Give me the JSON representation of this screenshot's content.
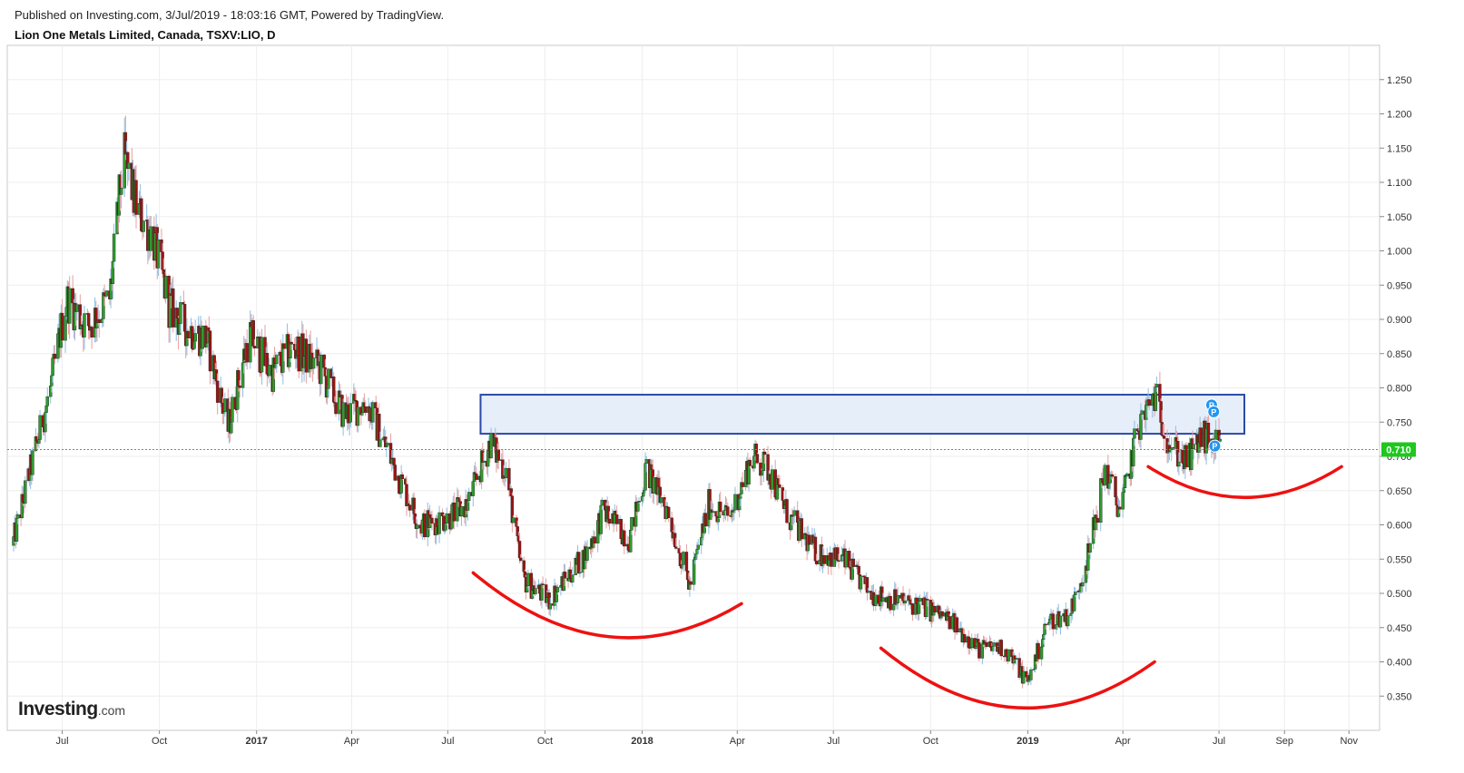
{
  "header": {
    "published": "Published on Investing.com, 3/Jul/2019 - 18:03:16 GMT, Powered by TradingView.",
    "symbol": "Lion One Metals Limited, Canada, TSXV:LIO, D"
  },
  "logo": {
    "main": "Investing",
    "suffix": ".com"
  },
  "colors": {
    "up": "#2e9b2e",
    "down": "#9b1414",
    "price_line": "#1ec81e",
    "zone_fill": "#e6eefa",
    "zone_border": "#2a4aa8",
    "arcs": "#ee1111",
    "grid": "#eeeeee",
    "marker": "#2196f3"
  },
  "chart_data": {
    "type": "candlestick",
    "title": "Lion One Metals Limited, Canada, TSXV:LIO, D",
    "current_price": 0.71,
    "current_price_label": "0.710",
    "y_axis": {
      "range": [
        0.3,
        1.3
      ],
      "ticks": [
        "0.350",
        "0.400",
        "0.450",
        "0.500",
        "0.550",
        "0.600",
        "0.650",
        "0.700",
        "0.750",
        "0.800",
        "0.850",
        "0.900",
        "0.950",
        "1.000",
        "1.050",
        "1.100",
        "1.150",
        "1.200",
        "1.250"
      ]
    },
    "x_axis": {
      "range": [
        "2016-05-10",
        "2019-11-30"
      ],
      "ticks": [
        {
          "label": "Jul",
          "date": "2016-07-01",
          "bold": false
        },
        {
          "label": "Oct",
          "date": "2016-10-01",
          "bold": false
        },
        {
          "label": "2017",
          "date": "2017-01-01",
          "bold": true
        },
        {
          "label": "Apr",
          "date": "2017-04-01",
          "bold": false
        },
        {
          "label": "Jul",
          "date": "2017-07-01",
          "bold": false
        },
        {
          "label": "Oct",
          "date": "2017-10-01",
          "bold": false
        },
        {
          "label": "2018",
          "date": "2018-01-01",
          "bold": true
        },
        {
          "label": "Apr",
          "date": "2018-04-01",
          "bold": false
        },
        {
          "label": "Jul",
          "date": "2018-07-01",
          "bold": false
        },
        {
          "label": "Oct",
          "date": "2018-10-01",
          "bold": false
        },
        {
          "label": "2019",
          "date": "2019-01-01",
          "bold": true
        },
        {
          "label": "Apr",
          "date": "2019-04-01",
          "bold": false
        },
        {
          "label": "Jul",
          "date": "2019-07-01",
          "bold": false
        },
        {
          "label": "Sep",
          "date": "2019-09-01",
          "bold": false
        },
        {
          "label": "Nov",
          "date": "2019-11-01",
          "bold": false
        }
      ]
    },
    "price_path": [
      {
        "date": "2016-05-15",
        "close": 0.57
      },
      {
        "date": "2016-06-01",
        "close": 0.68
      },
      {
        "date": "2016-06-20",
        "close": 0.8
      },
      {
        "date": "2016-07-05",
        "close": 0.93
      },
      {
        "date": "2016-07-25",
        "close": 0.89
      },
      {
        "date": "2016-08-15",
        "close": 0.93
      },
      {
        "date": "2016-08-28",
        "close": 1.14
      },
      {
        "date": "2016-09-10",
        "close": 1.06
      },
      {
        "date": "2016-09-25",
        "close": 1.02
      },
      {
        "date": "2016-10-10",
        "close": 0.92
      },
      {
        "date": "2016-10-25",
        "close": 0.89
      },
      {
        "date": "2016-11-15",
        "close": 0.87
      },
      {
        "date": "2016-12-05",
        "close": 0.74
      },
      {
        "date": "2016-12-25",
        "close": 0.88
      },
      {
        "date": "2017-01-15",
        "close": 0.82
      },
      {
        "date": "2017-02-05",
        "close": 0.86
      },
      {
        "date": "2017-03-01",
        "close": 0.83
      },
      {
        "date": "2017-03-25",
        "close": 0.76
      },
      {
        "date": "2017-04-15",
        "close": 0.78
      },
      {
        "date": "2017-05-10",
        "close": 0.69
      },
      {
        "date": "2017-06-05",
        "close": 0.6
      },
      {
        "date": "2017-07-01",
        "close": 0.61
      },
      {
        "date": "2017-07-20",
        "close": 0.63
      },
      {
        "date": "2017-08-10",
        "close": 0.72
      },
      {
        "date": "2017-08-25",
        "close": 0.68
      },
      {
        "date": "2017-09-10",
        "close": 0.52
      },
      {
        "date": "2017-10-05",
        "close": 0.49
      },
      {
        "date": "2017-10-25",
        "close": 0.53
      },
      {
        "date": "2017-11-10",
        "close": 0.56
      },
      {
        "date": "2017-11-25",
        "close": 0.62
      },
      {
        "date": "2017-12-20",
        "close": 0.58
      },
      {
        "date": "2018-01-05",
        "close": 0.68
      },
      {
        "date": "2018-01-25",
        "close": 0.62
      },
      {
        "date": "2018-02-15",
        "close": 0.51
      },
      {
        "date": "2018-03-05",
        "close": 0.63
      },
      {
        "date": "2018-03-25",
        "close": 0.61
      },
      {
        "date": "2018-04-15",
        "close": 0.7
      },
      {
        "date": "2018-05-01",
        "close": 0.68
      },
      {
        "date": "2018-05-20",
        "close": 0.61
      },
      {
        "date": "2018-06-15",
        "close": 0.56
      },
      {
        "date": "2018-07-10",
        "close": 0.55
      },
      {
        "date": "2018-08-05",
        "close": 0.5
      },
      {
        "date": "2018-08-30",
        "close": 0.49
      },
      {
        "date": "2018-09-25",
        "close": 0.48
      },
      {
        "date": "2018-10-20",
        "close": 0.46
      },
      {
        "date": "2018-11-15",
        "close": 0.42
      },
      {
        "date": "2018-12-10",
        "close": 0.42
      },
      {
        "date": "2019-01-01",
        "close": 0.37
      },
      {
        "date": "2019-01-20",
        "close": 0.46
      },
      {
        "date": "2019-02-10",
        "close": 0.47
      },
      {
        "date": "2019-02-28",
        "close": 0.56
      },
      {
        "date": "2019-03-15",
        "close": 0.68
      },
      {
        "date": "2019-03-30",
        "close": 0.62
      },
      {
        "date": "2019-04-15",
        "close": 0.74
      },
      {
        "date": "2019-05-01",
        "close": 0.79
      },
      {
        "date": "2019-05-15",
        "close": 0.72
      },
      {
        "date": "2019-06-01",
        "close": 0.69
      },
      {
        "date": "2019-06-15",
        "close": 0.73
      },
      {
        "date": "2019-07-03",
        "close": 0.71
      }
    ],
    "resistance_zone": {
      "x0": "2017-08-01",
      "x1": "2019-07-25",
      "y0": 0.733,
      "y1": 0.79
    },
    "arcs": [
      {
        "x0": "2017-07-25",
        "x1": "2018-04-05",
        "y_start": 0.53,
        "y_bottom": 0.437,
        "y_end": 0.485
      },
      {
        "x0": "2018-08-15",
        "x1": "2019-05-01",
        "y_start": 0.42,
        "y_bottom": 0.333,
        "y_end": 0.4
      },
      {
        "x0": "2019-04-25",
        "x1": "2019-10-25",
        "y_start": 0.685,
        "y_bottom": 0.64,
        "y_end": 0.685
      }
    ],
    "markers": [
      {
        "date": "2019-06-24",
        "price": 0.775,
        "label": "P"
      },
      {
        "date": "2019-06-26",
        "price": 0.765,
        "label": "P"
      },
      {
        "date": "2019-06-27",
        "price": 0.715,
        "label": "P"
      }
    ]
  }
}
